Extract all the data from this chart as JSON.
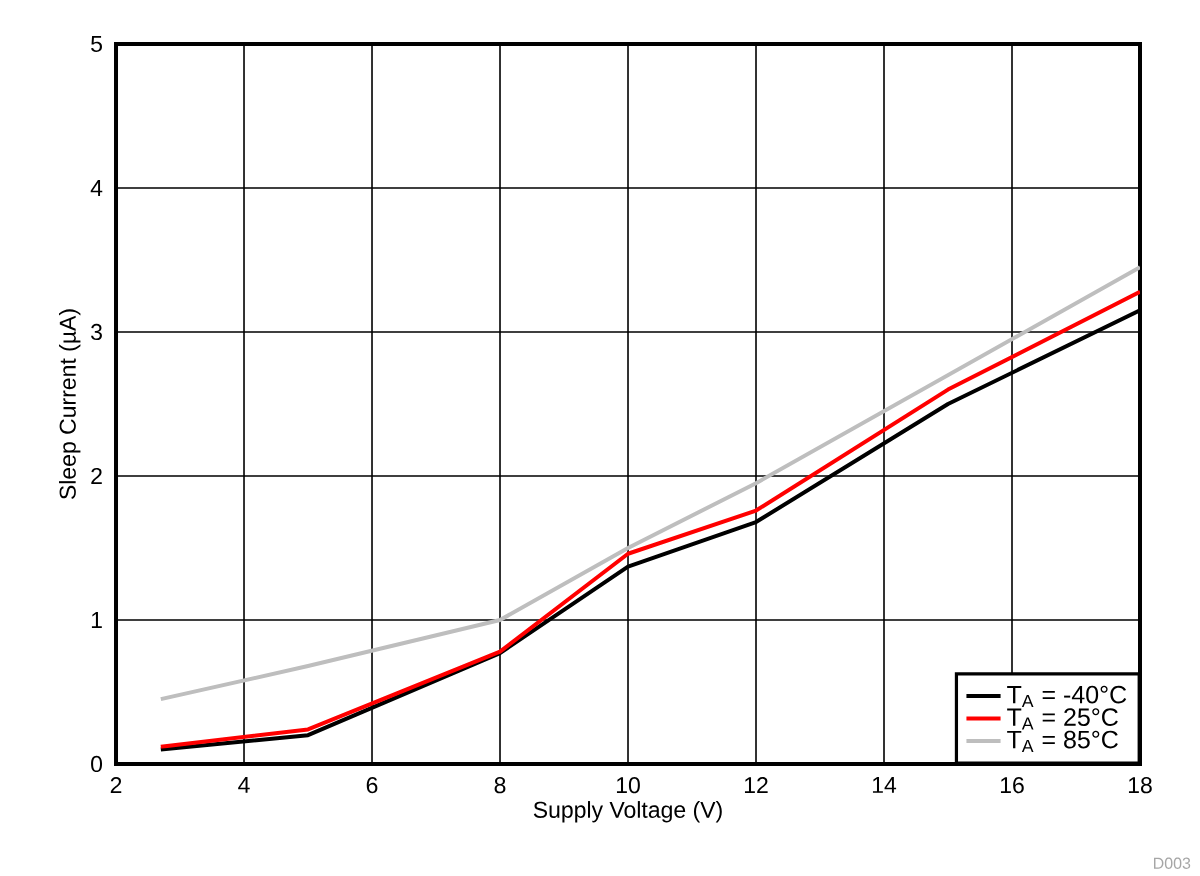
{
  "chart_data": {
    "type": "line",
    "xlabel": "Supply Voltage (V)",
    "ylabel": "Sleep Current (µA)",
    "xlim": [
      2,
      18
    ],
    "ylim": [
      0,
      5
    ],
    "xticks": [
      2,
      4,
      6,
      8,
      10,
      12,
      14,
      16,
      18
    ],
    "yticks": [
      0,
      1,
      2,
      3,
      4,
      5
    ],
    "grid": true,
    "legend": "bottom right",
    "line_style": "solid",
    "marker": "none",
    "annotations": [
      "D003"
    ],
    "series": [
      {
        "name": "T$_{A}$ = -40°C",
        "color": "#000000",
        "x": [
          2.7,
          5,
          8,
          10,
          12,
          15,
          18
        ],
        "values": [
          0.1,
          0.2,
          0.77,
          1.37,
          1.68,
          2.5,
          3.15
        ]
      },
      {
        "name": "T$_{A}$ = 25°C",
        "color": "#ff0000",
        "x": [
          2.7,
          5,
          8,
          10,
          12,
          15,
          18
        ],
        "values": [
          0.12,
          0.24,
          0.78,
          1.46,
          1.76,
          2.6,
          3.28
        ]
      },
      {
        "name": "T$_{A}$ = 85°C",
        "color": "#bebebe",
        "x": [
          2.7,
          5,
          8,
          10,
          12,
          18
        ],
        "values": [
          0.45,
          0.68,
          1.0,
          1.5,
          1.95,
          3.45
        ]
      }
    ]
  }
}
